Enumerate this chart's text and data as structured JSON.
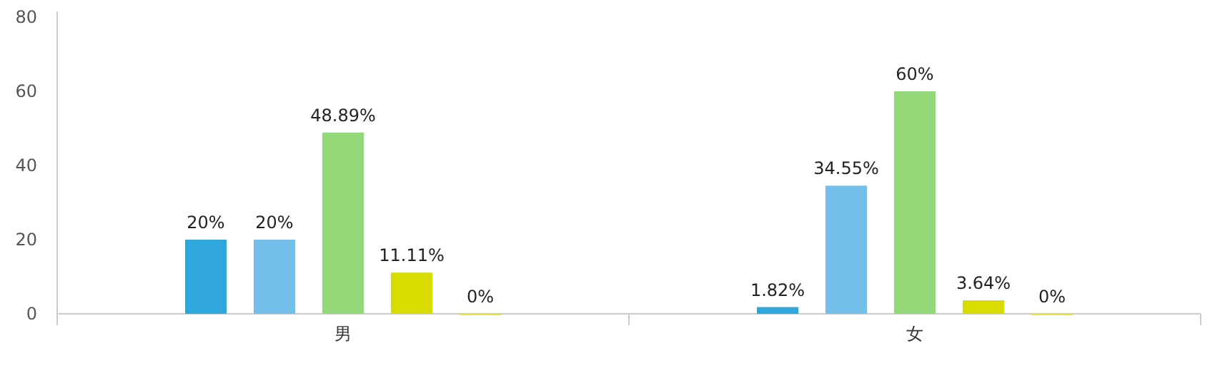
{
  "chart_data": {
    "type": "bar",
    "categories": [
      "男",
      "女"
    ],
    "ylim": [
      0,
      80
    ],
    "yticks": [
      0,
      20,
      40,
      60,
      80
    ],
    "grid": false,
    "series": [
      {
        "color": "#2fa6dc",
        "values": [
          20,
          1.82
        ],
        "value_labels": [
          "20%",
          "1.82%"
        ]
      },
      {
        "color": "#73c0ec",
        "values": [
          20,
          34.55
        ],
        "value_labels": [
          "20%",
          "34.55%"
        ]
      },
      {
        "color": "#93d97a",
        "values": [
          48.89,
          60
        ],
        "value_labels": [
          "48.89%",
          "60%"
        ]
      },
      {
        "color": "#d9dc00",
        "values": [
          11.11,
          3.64
        ],
        "value_labels": [
          "11.11%",
          "3.64%"
        ]
      },
      {
        "color": "#e8e23c",
        "values": [
          0,
          0
        ],
        "value_labels": [
          "0%",
          "0%"
        ]
      }
    ]
  }
}
